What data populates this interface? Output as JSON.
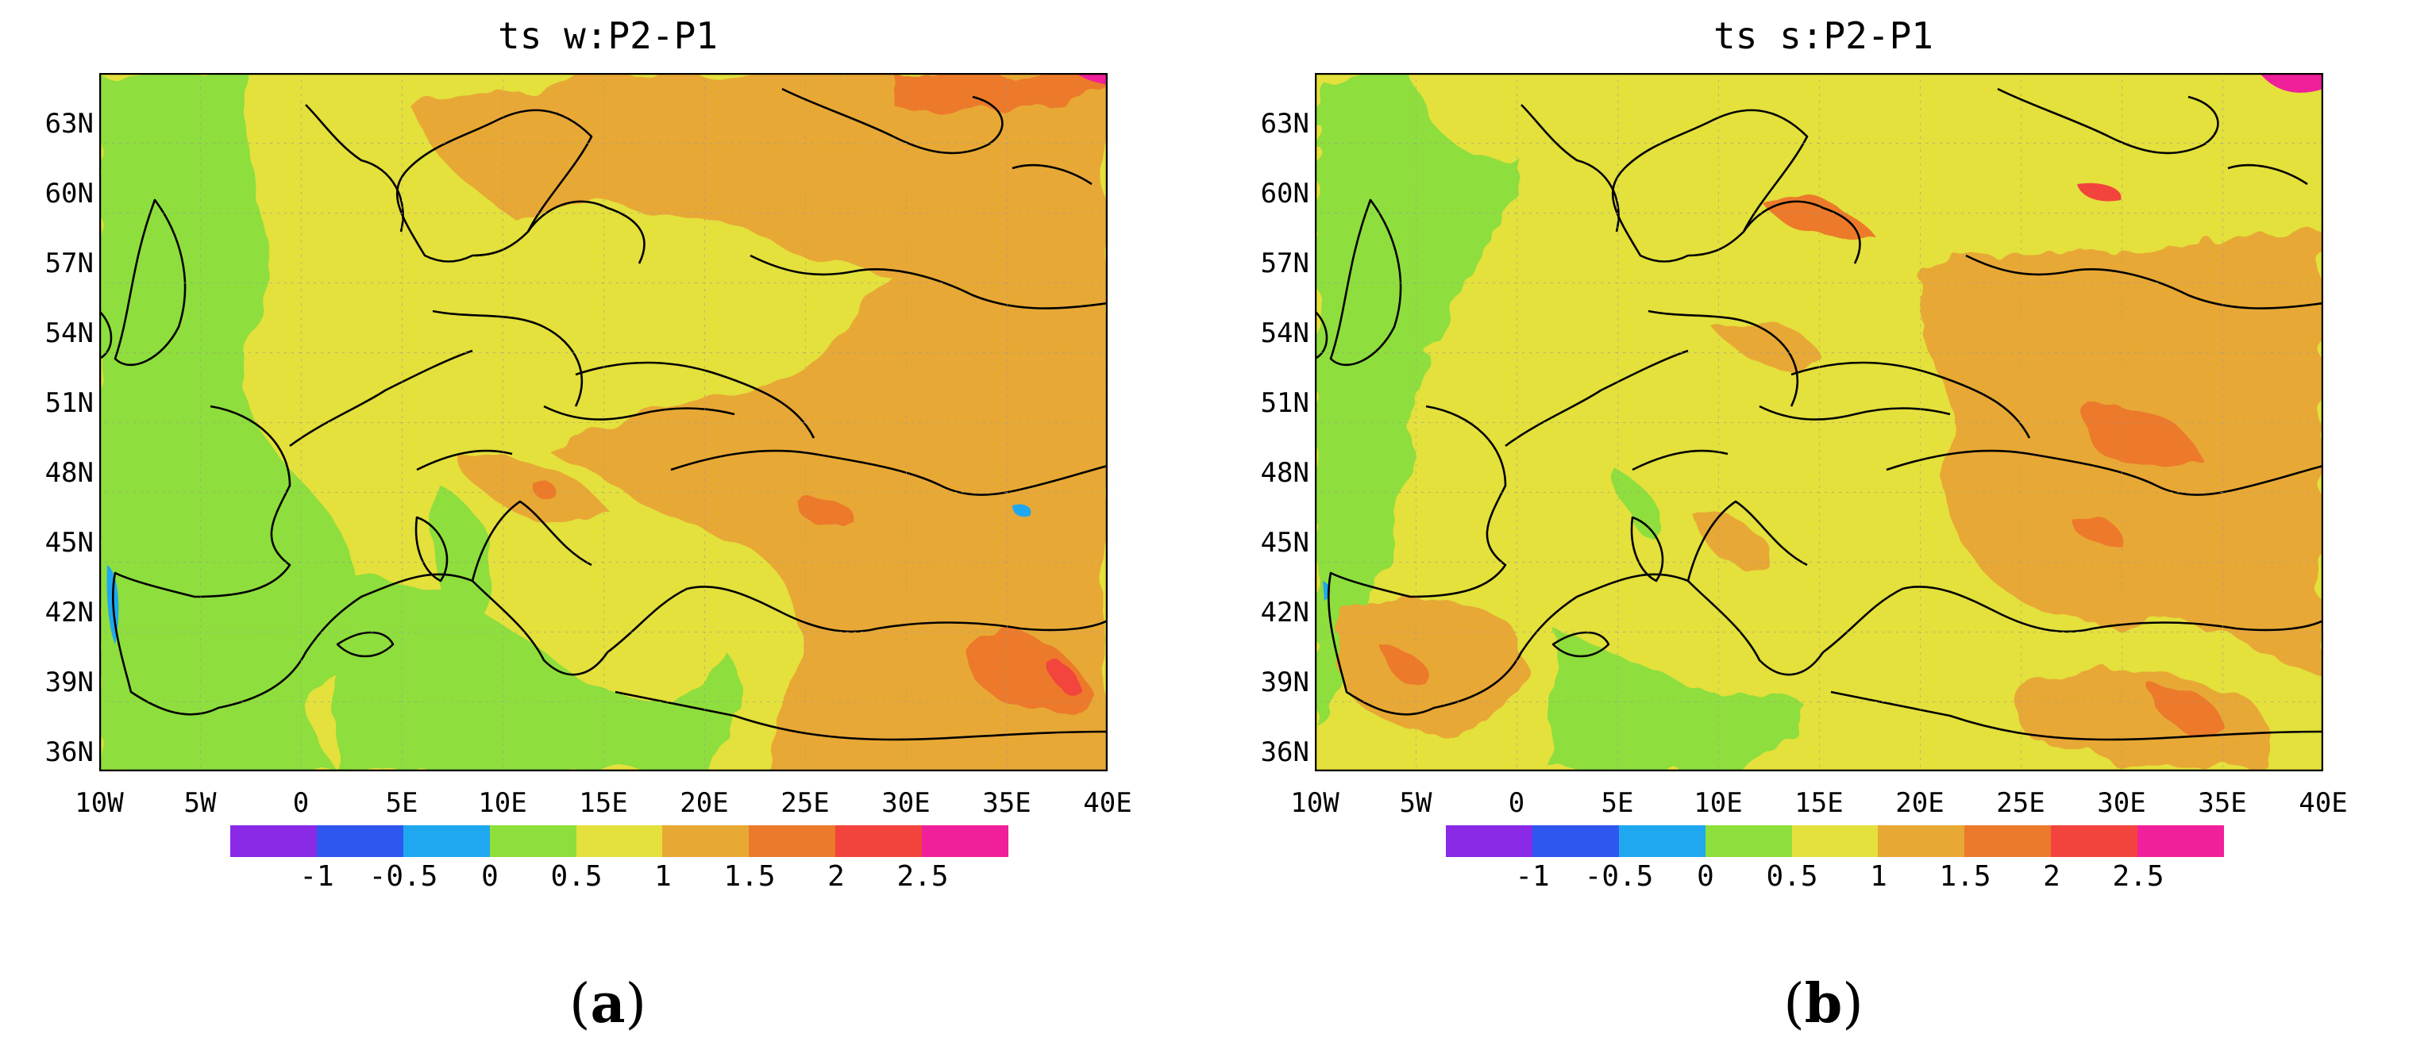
{
  "colors": {
    "palette": [
      "#8a2ae6",
      "#2e57f0",
      "#1fa8f0",
      "#8ede3c",
      "#e4e03c",
      "#e8a834",
      "#ec7a2c",
      "#f2443c",
      "#f0209a"
    ],
    "coast": "#000000"
  },
  "colorbar": {
    "labels": [
      "-1",
      "-0.5",
      "0",
      "0.5",
      "1",
      "1.5",
      "2",
      "2.5"
    ]
  },
  "panels": [
    {
      "title": "ts  w:P2-P1",
      "caption_open": "(",
      "caption_letter": "a",
      "caption_close": ")",
      "lat_labels": [
        "63N",
        "60N",
        "57N",
        "54N",
        "51N",
        "48N",
        "45N",
        "42N",
        "39N",
        "36N"
      ],
      "lon_labels": [
        "10W",
        "5W",
        "0",
        "5E",
        "10E",
        "15E",
        "20E",
        "25E",
        "30E",
        "35E",
        "40E"
      ]
    },
    {
      "title": "ts  s:P2-P1",
      "caption_open": "(",
      "caption_letter": "b",
      "caption_close": ")",
      "lat_labels": [
        "63N",
        "60N",
        "57N",
        "54N",
        "51N",
        "48N",
        "45N",
        "42N",
        "39N",
        "36N"
      ],
      "lon_labels": [
        "10W",
        "5W",
        "0",
        "5E",
        "10E",
        "15E",
        "20E",
        "25E",
        "30E",
        "35E",
        "40E"
      ]
    }
  ]
}
